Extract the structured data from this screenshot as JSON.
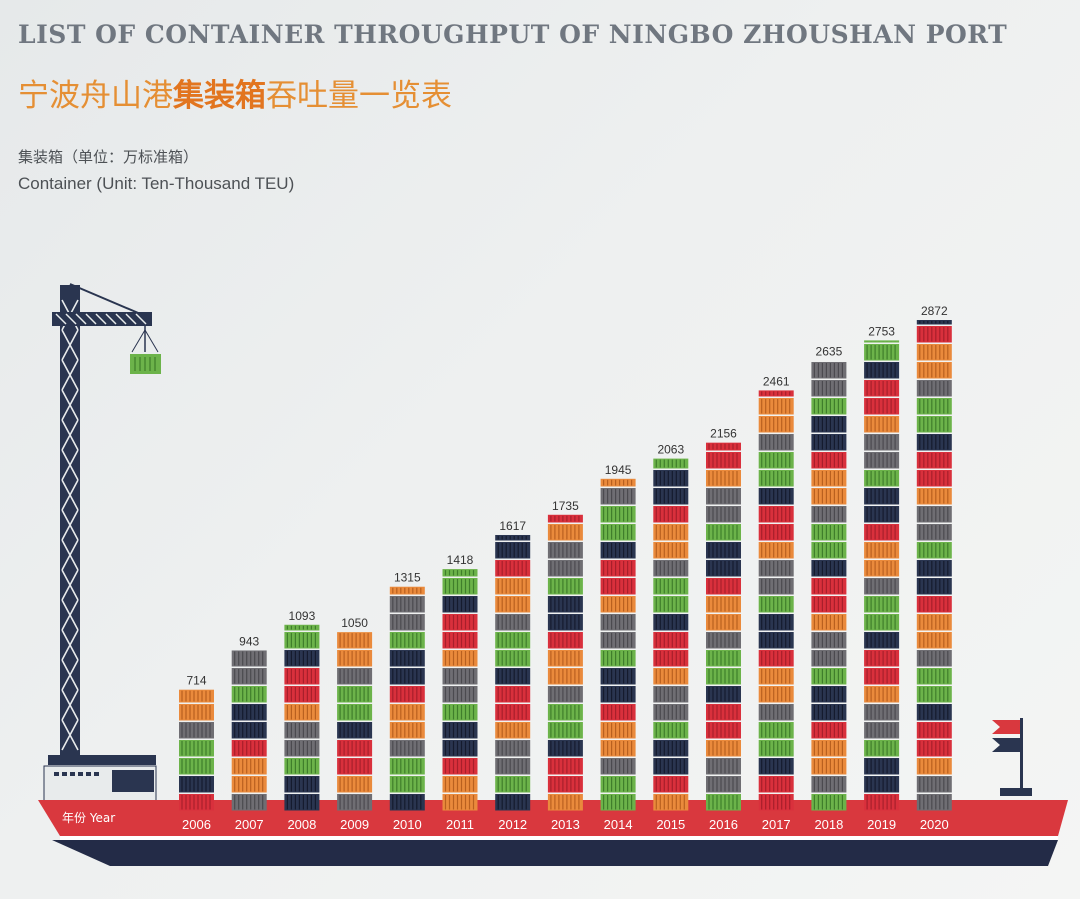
{
  "header": {
    "title_en": "LIST OF CONTAINER THROUGHPUT OF NINGBO ZHOUSHAN PORT",
    "title_cn_prefix": "宁波舟山港",
    "title_cn_bold": "集装箱",
    "title_cn_suffix": "吞吐量一览表",
    "unit_cn": "集装箱（单位：万标准箱）",
    "unit_en": "Container (Unit: Ten-Thousand TEU)"
  },
  "chart_data": {
    "type": "bar",
    "categories": [
      "2006",
      "2007",
      "2008",
      "2009",
      "2010",
      "2011",
      "2012",
      "2013",
      "2014",
      "2015",
      "2016",
      "2017",
      "2018",
      "2019",
      "2020"
    ],
    "values": [
      714,
      943,
      1093,
      1050,
      1315,
      1418,
      1617,
      1735,
      1945,
      2063,
      2156,
      2461,
      2635,
      2753,
      2872
    ],
    "xlabel": "年份 Year",
    "ylabel": "",
    "ylim": [
      0,
      2900
    ],
    "grid": false,
    "colors": {
      "container_red": "#d9303c",
      "container_green": "#6cb34a",
      "container_orange": "#ea8a3c",
      "container_navy": "#2a3550",
      "container_gray": "#6f6e73",
      "ship_red": "#d9383e",
      "ship_navy": "#232b47",
      "crane": "#2a3550"
    }
  }
}
